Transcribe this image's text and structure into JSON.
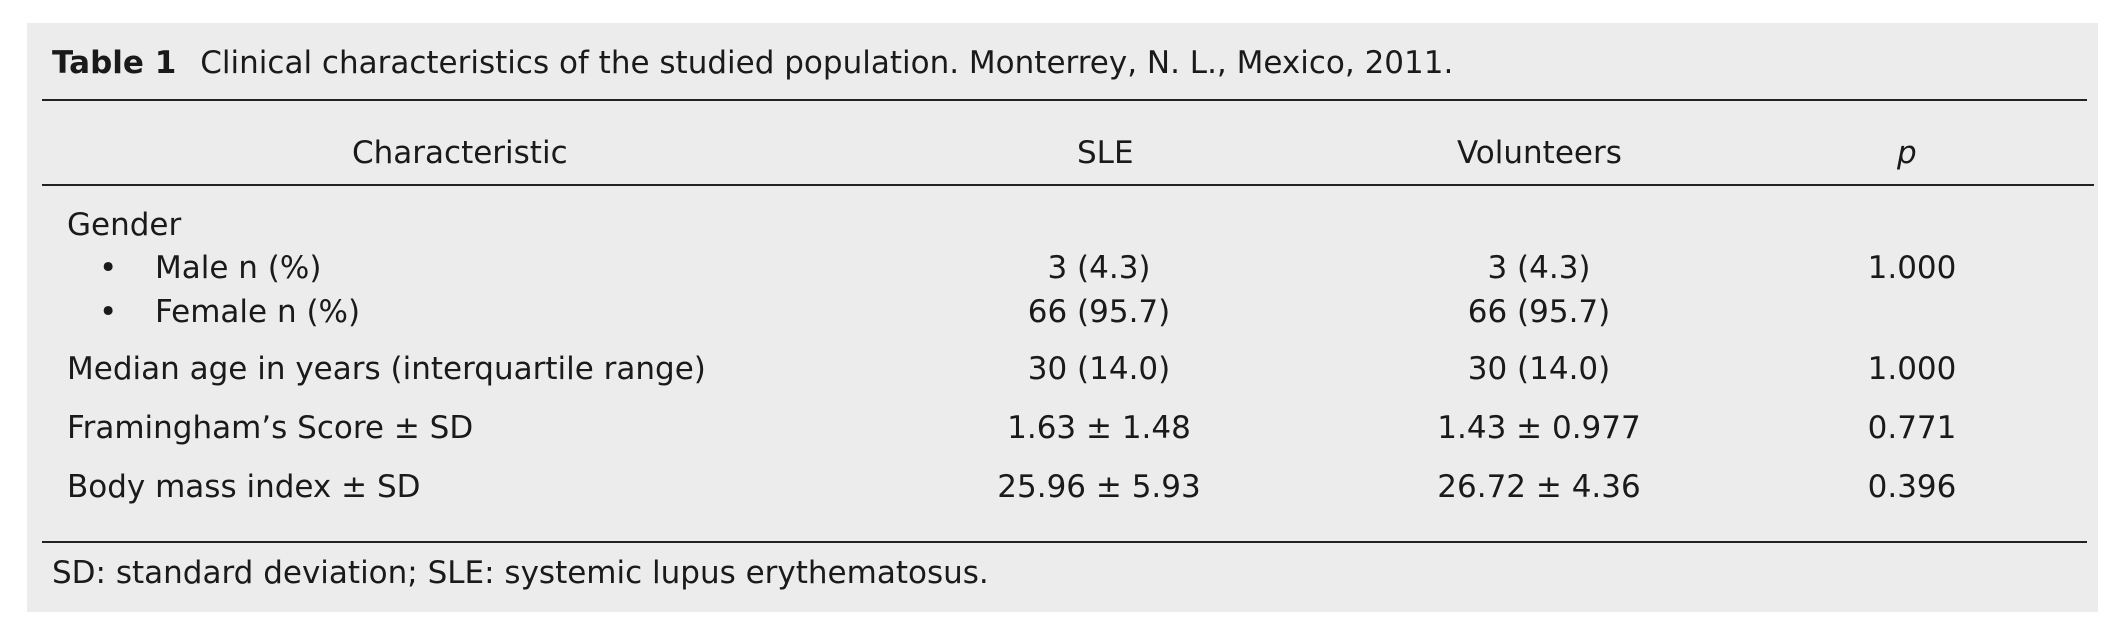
{
  "table": {
    "label": "Table 1",
    "caption": "Clinical characteristics of the studied population. Monterrey, N. L., Mexico, 2011.",
    "columns": [
      "Characteristic",
      "SLE",
      "Volunteers",
      "p"
    ],
    "group_gender": "Gender",
    "bullet_symbol": "•",
    "rows": [
      {
        "label": "Male n (%)",
        "sle": "3 (4.3)",
        "vol": "3 (4.3)",
        "p": "1.000"
      },
      {
        "label": "Female n (%)",
        "sle": "66 (95.7)",
        "vol": "66 (95.7)",
        "p": ""
      },
      {
        "label": "Median age in years (interquartile range)",
        "sle": "30 (14.0)",
        "vol": "30 (14.0)",
        "p": "1.000"
      },
      {
        "label": "Framingham’s Score ± SD",
        "sle": "1.63 ± 1.48",
        "vol": "1.43 ± 0.977",
        "p": "0.771"
      },
      {
        "label": "Body mass index ± SD",
        "sle": "25.96 ± 5.93",
        "vol": "26.72 ± 4.36",
        "p": "0.396"
      }
    ],
    "footnote": "SD: standard deviation; SLE: systemic lupus erythematosus."
  }
}
